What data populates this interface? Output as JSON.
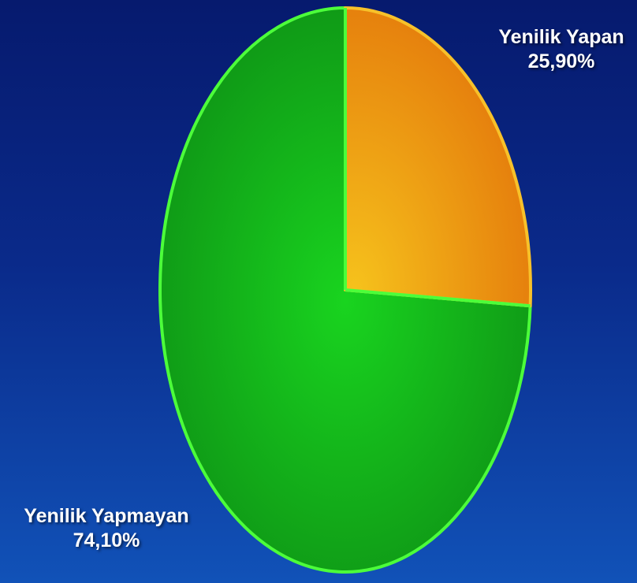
{
  "chart_data": {
    "type": "pie",
    "slices": [
      {
        "label": "Yenilik Yapan",
        "value_text": "25,90%",
        "value": 25.9,
        "color": "#e8860f",
        "highlight_color": "#f6c21c"
      },
      {
        "label": "Yenilik Yapmayan",
        "value_text": "74,10%",
        "value": 74.1,
        "color": "#12a21a",
        "highlight_color": "#19d41f"
      }
    ],
    "edge_color": "#4cff3a",
    "start_angle_deg": 90,
    "direction": "clockwise"
  },
  "background": {
    "top_color": "#061a6e",
    "bottom_color": "#1152b8"
  }
}
